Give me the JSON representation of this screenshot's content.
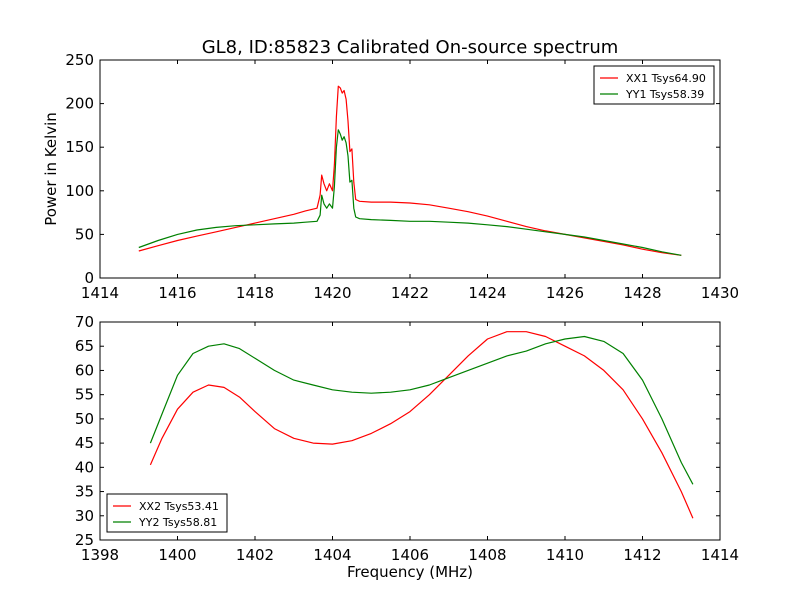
{
  "title": "GL8, ID:85823 Calibrated On-source spectrum",
  "chart_data": [
    {
      "type": "line",
      "title": "GL8, ID:85823 Calibrated On-source spectrum",
      "xlabel": "",
      "ylabel": "Power in Kelvin",
      "xlim": [
        1414,
        1430
      ],
      "ylim": [
        0,
        250
      ],
      "xticks": [
        1414,
        1416,
        1418,
        1420,
        1422,
        1424,
        1426,
        1428,
        1430
      ],
      "yticks": [
        0,
        50,
        100,
        150,
        200,
        250
      ],
      "grid": false,
      "legend": "top-right",
      "series": [
        {
          "name": "XX1 Tsys64.90",
          "color": "#ff0000",
          "x": [
            1415.0,
            1415.5,
            1416.0,
            1416.5,
            1417.0,
            1417.5,
            1418.0,
            1418.5,
            1419.0,
            1419.3,
            1419.6,
            1419.68,
            1419.72,
            1419.78,
            1419.85,
            1419.92,
            1420.0,
            1420.05,
            1420.1,
            1420.15,
            1420.2,
            1420.25,
            1420.3,
            1420.35,
            1420.4,
            1420.45,
            1420.5,
            1420.55,
            1420.6,
            1420.7,
            1421.0,
            1421.5,
            1422.0,
            1422.5,
            1423.0,
            1423.5,
            1424.0,
            1424.5,
            1425.0,
            1425.5,
            1426.0,
            1426.5,
            1427.0,
            1427.5,
            1428.0,
            1428.5,
            1429.0
          ],
          "y": [
            31,
            37,
            43,
            48,
            53,
            58,
            63,
            68,
            73,
            77,
            80,
            95,
            118,
            108,
            100,
            108,
            100,
            130,
            185,
            220,
            218,
            212,
            215,
            205,
            180,
            145,
            148,
            110,
            90,
            88,
            87,
            87,
            86,
            84,
            80,
            76,
            71,
            65,
            59,
            54,
            50,
            46,
            42,
            38,
            33,
            29,
            26
          ]
        },
        {
          "name": "YY1 Tsys58.39",
          "color": "#008000",
          "x": [
            1415.0,
            1415.5,
            1416.0,
            1416.5,
            1417.0,
            1417.5,
            1418.0,
            1418.5,
            1419.0,
            1419.3,
            1419.6,
            1419.68,
            1419.72,
            1419.78,
            1419.85,
            1419.92,
            1420.0,
            1420.05,
            1420.1,
            1420.15,
            1420.2,
            1420.25,
            1420.3,
            1420.35,
            1420.4,
            1420.45,
            1420.5,
            1420.55,
            1420.6,
            1420.7,
            1421.0,
            1421.5,
            1422.0,
            1422.5,
            1423.0,
            1423.5,
            1424.0,
            1424.5,
            1425.0,
            1425.5,
            1426.0,
            1426.5,
            1427.0,
            1427.5,
            1428.0,
            1428.5,
            1429.0
          ],
          "y": [
            35,
            43,
            50,
            55,
            58,
            60,
            61,
            62,
            63,
            64,
            65,
            72,
            95,
            85,
            80,
            85,
            80,
            105,
            150,
            170,
            165,
            158,
            162,
            155,
            140,
            110,
            112,
            80,
            70,
            68,
            67,
            66,
            65,
            65,
            64,
            63,
            61,
            59,
            56,
            53,
            50,
            47,
            43,
            39,
            35,
            30,
            26
          ]
        }
      ]
    },
    {
      "type": "line",
      "title": "",
      "xlabel": "Frequency (MHz)",
      "ylabel": "",
      "xlim": [
        1398,
        1414
      ],
      "ylim": [
        25,
        70
      ],
      "xticks": [
        1398,
        1400,
        1402,
        1404,
        1406,
        1408,
        1410,
        1412,
        1414
      ],
      "yticks": [
        25,
        30,
        35,
        40,
        45,
        50,
        55,
        60,
        65,
        70
      ],
      "grid": false,
      "legend": "bottom-left",
      "series": [
        {
          "name": "XX2 Tsys53.41",
          "color": "#ff0000",
          "x": [
            1399.3,
            1399.6,
            1400.0,
            1400.4,
            1400.8,
            1401.2,
            1401.6,
            1402.0,
            1402.5,
            1403.0,
            1403.5,
            1404.0,
            1404.5,
            1405.0,
            1405.5,
            1406.0,
            1406.5,
            1407.0,
            1407.5,
            1408.0,
            1408.5,
            1409.0,
            1409.5,
            1410.0,
            1410.5,
            1411.0,
            1411.5,
            1412.0,
            1412.5,
            1413.0,
            1413.3
          ],
          "y": [
            40.5,
            46,
            52,
            55.5,
            57,
            56.5,
            54.5,
            51.5,
            48,
            46,
            45,
            44.8,
            45.5,
            47,
            49,
            51.5,
            55,
            59,
            63,
            66.5,
            68,
            68,
            67,
            65,
            63,
            60,
            56,
            50,
            43,
            35,
            29.5
          ]
        },
        {
          "name": "YY2 Tsys58.81",
          "color": "#008000",
          "x": [
            1399.3,
            1399.6,
            1400.0,
            1400.4,
            1400.8,
            1401.2,
            1401.6,
            1402.0,
            1402.5,
            1403.0,
            1403.5,
            1404.0,
            1404.5,
            1405.0,
            1405.5,
            1406.0,
            1406.5,
            1407.0,
            1407.5,
            1408.0,
            1408.5,
            1409.0,
            1409.5,
            1410.0,
            1410.5,
            1411.0,
            1411.5,
            1412.0,
            1412.5,
            1413.0,
            1413.3
          ],
          "y": [
            45,
            51,
            59,
            63.5,
            65,
            65.5,
            64.5,
            62.5,
            60,
            58,
            57,
            56,
            55.5,
            55.3,
            55.5,
            56,
            57,
            58.5,
            60,
            61.5,
            63,
            64,
            65.5,
            66.5,
            67,
            66,
            63.5,
            58,
            50,
            41,
            36.5
          ]
        }
      ]
    }
  ]
}
